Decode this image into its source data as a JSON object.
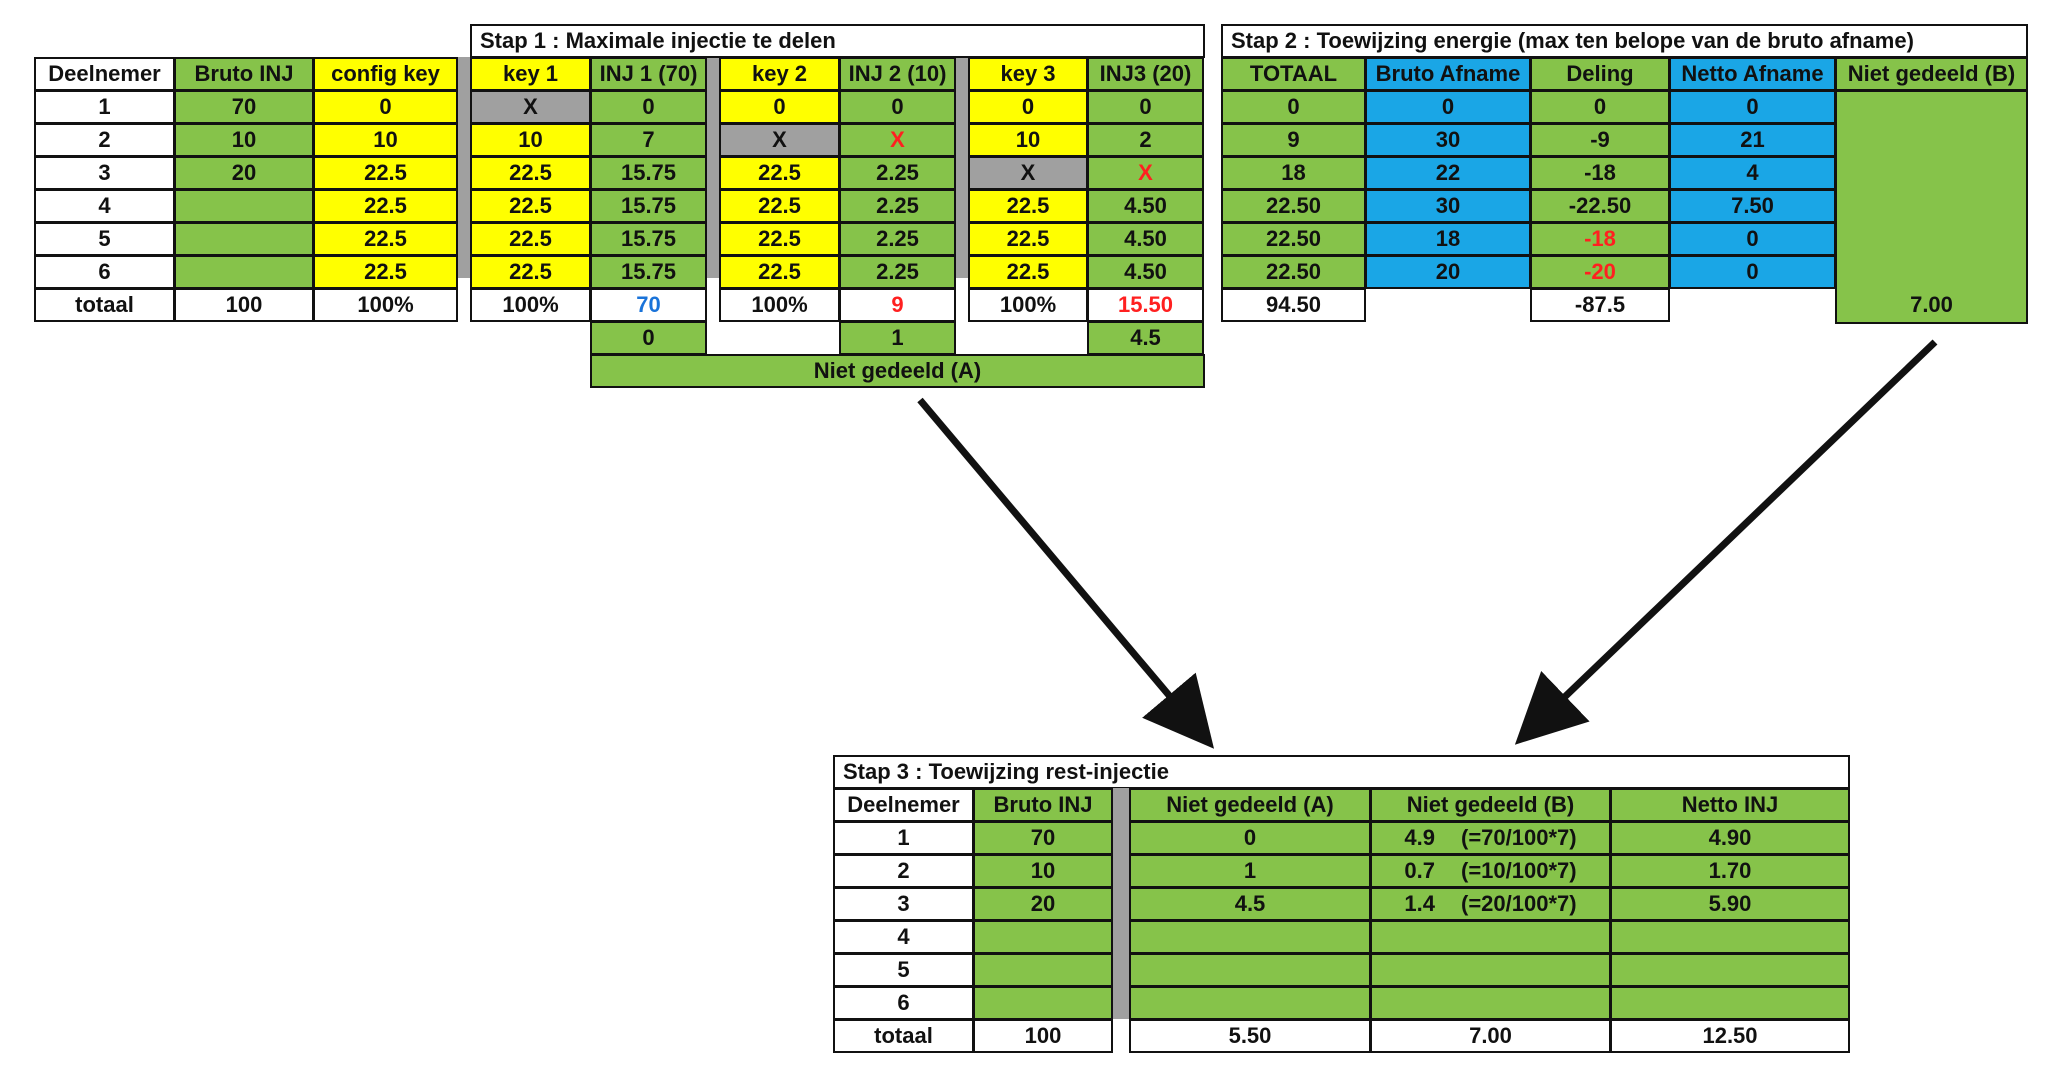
{
  "step1": {
    "title": "Stap 1 : Maximale injectie te delen",
    "headers": [
      "Deelnemer",
      "Bruto INJ",
      "config key",
      "key 1",
      "INJ 1 (70)",
      "key 2",
      "INJ 2 (10)",
      "key 3",
      "INJ3 (20)"
    ],
    "rows": [
      [
        "1",
        "70",
        "0",
        "X",
        "0",
        "0",
        "0",
        "0",
        "0"
      ],
      [
        "2",
        "10",
        "10",
        "10",
        "7",
        "X",
        "X",
        "10",
        "2"
      ],
      [
        "3",
        "20",
        "22.5",
        "22.5",
        "15.75",
        "22.5",
        "2.25",
        "X",
        "X"
      ],
      [
        "4",
        "",
        "22.5",
        "22.5",
        "15.75",
        "22.5",
        "2.25",
        "22.5",
        "4.50"
      ],
      [
        "5",
        "",
        "22.5",
        "22.5",
        "15.75",
        "22.5",
        "2.25",
        "22.5",
        "4.50"
      ],
      [
        "6",
        "",
        "22.5",
        "22.5",
        "15.75",
        "22.5",
        "2.25",
        "22.5",
        "4.50"
      ]
    ],
    "totals": [
      "totaal",
      "100",
      "100%",
      "100%",
      "70",
      "100%",
      "9",
      "100%",
      "15.50"
    ],
    "rest": [
      "0",
      "1",
      "4.5"
    ],
    "footer": "Niet gedeeld (A)"
  },
  "step2": {
    "title": "Stap 2 : Toewijzing energie (max ten belope van de bruto afname)",
    "headers": [
      "TOTAAL",
      "Bruto Afname",
      "Deling",
      "Netto Afname",
      "Niet gedeeld (B)"
    ],
    "rows": [
      [
        "0",
        "0",
        "0",
        "0"
      ],
      [
        "9",
        "30",
        "-9",
        "21"
      ],
      [
        "18",
        "22",
        "-18",
        "4"
      ],
      [
        "22.50",
        "30",
        "-22.50",
        "7.50"
      ],
      [
        "22.50",
        "18",
        "-18",
        "0"
      ],
      [
        "22.50",
        "20",
        "-20",
        "0"
      ]
    ],
    "totals": [
      "94.50",
      "",
      "-87.5",
      "",
      "7.00"
    ]
  },
  "step3": {
    "title": "Stap 3 : Toewijzing rest-injectie",
    "headers": [
      "Deelnemer",
      "Bruto INJ",
      "Niet gedeeld (A)",
      "Niet gedeeld (B)",
      "Netto INJ"
    ],
    "rows": [
      [
        "1",
        "70",
        "0",
        "4.9",
        "(=70/100*7)",
        "4.90"
      ],
      [
        "2",
        "10",
        "1",
        "0.7",
        "(=10/100*7)",
        "1.70"
      ],
      [
        "3",
        "20",
        "4.5",
        "1.4",
        "(=20/100*7)",
        "5.90"
      ],
      [
        "4",
        "",
        "",
        "",
        "",
        ""
      ],
      [
        "5",
        "",
        "",
        "",
        "",
        ""
      ],
      [
        "6",
        "",
        "",
        "",
        "",
        ""
      ]
    ],
    "totals": [
      "totaal",
      "100",
      "5.50",
      "7.00",
      "12.50"
    ]
  },
  "colors": {
    "green": "#86c34a",
    "yellow": "#ffff00",
    "blue": "#1aa6e6",
    "grey": "#a0a0a0",
    "red_text": "#ff2020",
    "blue_text": "#1a73d9"
  }
}
